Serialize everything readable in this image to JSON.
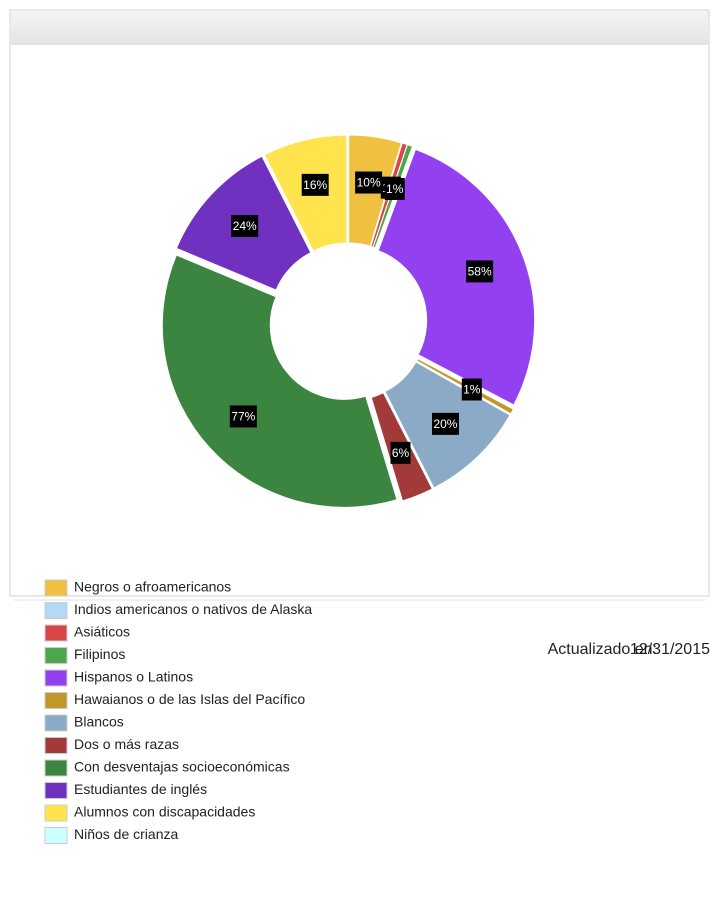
{
  "chart_data": {
    "type": "donut",
    "categories": [
      "Negros o afroamericanos",
      "Indios americanos o nativos de Alaska",
      "Asiáticos",
      "Filipinos",
      "Hispanos o Latinos",
      "Hawaianos o de las Islas del Pacífico",
      "Blancos",
      "Dos o más razas",
      "Con desventajas socioeconómicas",
      "Estudiantes de inglés",
      "Alumnos con discapacidades",
      "Niños de crianza"
    ],
    "values": [
      10,
      0,
      1,
      1,
      58,
      1,
      20,
      6,
      77,
      24,
      16,
      0
    ],
    "value_labels": [
      "10%",
      null,
      "1%",
      "1%",
      "58%",
      "1%",
      "20%",
      "6%",
      "77%",
      "24%",
      "16%",
      null
    ],
    "colors": [
      "#f0c040",
      "#b3d9f7",
      "#d94848",
      "#4ca64c",
      "#9340f0",
      "#c0982a",
      "#8aaac8",
      "#a33a3a",
      "#3b8540",
      "#7030c0",
      "#ffe44d",
      "#ccffff"
    ]
  },
  "updated_label": "Actualizado en:",
  "updated_date": "12/31/2015"
}
